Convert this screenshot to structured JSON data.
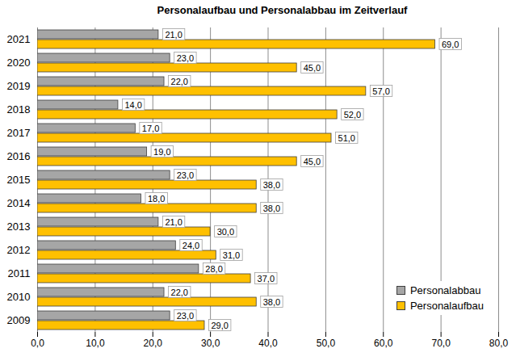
{
  "chart_data": {
    "type": "bar",
    "title": "Personalaufbau und Personalabbau im Zeitverlauf",
    "orientation": "horizontal",
    "categories": [
      "2021",
      "2020",
      "2019",
      "2018",
      "2017",
      "2016",
      "2015",
      "2014",
      "2013",
      "2012",
      "2011",
      "2010",
      "2009"
    ],
    "series": [
      {
        "name": "Personalabbau",
        "color": "#a6a6a6",
        "values": [
          21,
          23,
          22,
          14,
          17,
          19,
          23,
          18,
          21,
          24,
          28,
          22,
          23
        ],
        "value_labels": [
          "21,0",
          "23,0",
          "22,0",
          "14,0",
          "17,0",
          "19,0",
          "23,0",
          "18,0",
          "21,0",
          "24,0",
          "28,0",
          "22,0",
          "23,0"
        ]
      },
      {
        "name": "Personalaufbau",
        "color": "#ffc000",
        "values": [
          69,
          45,
          57,
          52,
          51,
          45,
          38,
          38,
          30,
          31,
          37,
          38,
          29
        ],
        "value_labels": [
          "69,0",
          "45,0",
          "57,0",
          "52,0",
          "51,0",
          "45,0",
          "38,0",
          "38,0",
          "30,0",
          "31,0",
          "37,0",
          "38,0",
          "29,0"
        ]
      }
    ],
    "xlim": [
      0,
      80
    ],
    "xticks": [
      {
        "value": 0,
        "label": "0,0"
      },
      {
        "value": 10,
        "label": "10,0"
      },
      {
        "value": 20,
        "label": "20,0"
      },
      {
        "value": 30,
        "label": "30,0"
      },
      {
        "value": 40,
        "label": "40,0"
      },
      {
        "value": 50,
        "label": "50,0"
      },
      {
        "value": 60,
        "label": "60,0"
      },
      {
        "value": 70,
        "label": "70,0"
      },
      {
        "value": 80,
        "label": "80,0"
      }
    ],
    "grid": true,
    "data_labels": true,
    "legend": "lower right"
  }
}
